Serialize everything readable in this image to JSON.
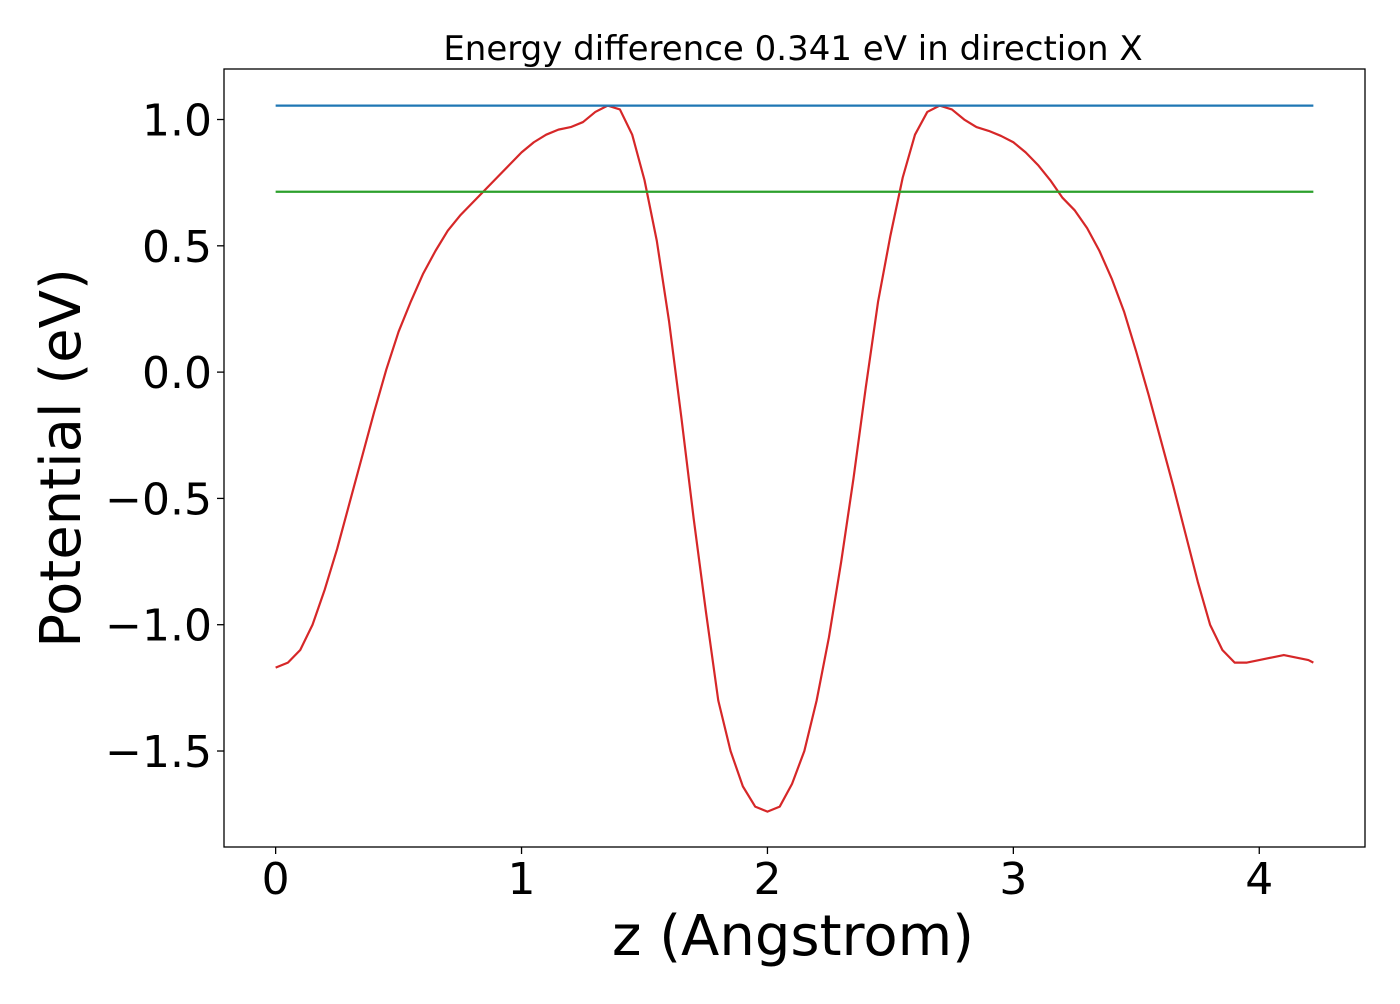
{
  "chart_data": {
    "type": "line",
    "title": "Energy difference 0.341 eV in direction X",
    "xlabel": "z (Angstrom)",
    "ylabel": "Potential (eV)",
    "xlim": [
      -0.21,
      4.43
    ],
    "ylim": [
      -1.88,
      1.2
    ],
    "xticks": [
      0,
      1,
      2,
      3,
      4
    ],
    "xtick_labels": [
      "0",
      "1",
      "2",
      "3",
      "4"
    ],
    "yticks": [
      1.0,
      0.5,
      0.0,
      -0.5,
      -1.0,
      -1.5
    ],
    "ytick_labels": [
      "1.0",
      "0.5",
      "0.0",
      "−0.5",
      "−1.0",
      "−1.5"
    ],
    "grid": false,
    "series": [
      {
        "color": "#d62728",
        "x": [
          0.0,
          0.05,
          0.1,
          0.15,
          0.2,
          0.25,
          0.3,
          0.35,
          0.4,
          0.45,
          0.5,
          0.55,
          0.6,
          0.65,
          0.7,
          0.75,
          0.8,
          0.85,
          0.9,
          0.95,
          1.0,
          1.05,
          1.1,
          1.15,
          1.2,
          1.25,
          1.3,
          1.35,
          1.4,
          1.45,
          1.5,
          1.55,
          1.6,
          1.65,
          1.7,
          1.75,
          1.8,
          1.85,
          1.9,
          1.95,
          2.0,
          2.05,
          2.1,
          2.15,
          2.2,
          2.25,
          2.3,
          2.35,
          2.4,
          2.45,
          2.5,
          2.55,
          2.6,
          2.65,
          2.7,
          2.75,
          2.8,
          2.85,
          2.9,
          2.95,
          3.0,
          3.05,
          3.1,
          3.15,
          3.2,
          3.25,
          3.3,
          3.35,
          3.4,
          3.45,
          3.5,
          3.55,
          3.6,
          3.65,
          3.7,
          3.75,
          3.8,
          3.85,
          3.9,
          3.95,
          4.0,
          4.05,
          4.1,
          4.15,
          4.2,
          4.22
        ],
        "y": [
          -1.17,
          -1.15,
          -1.1,
          -1.0,
          -0.86,
          -0.7,
          -0.52,
          -0.34,
          -0.16,
          0.01,
          0.16,
          0.28,
          0.39,
          0.48,
          0.56,
          0.62,
          0.67,
          0.72,
          0.77,
          0.82,
          0.87,
          0.91,
          0.94,
          0.96,
          0.97,
          0.99,
          1.03,
          1.055,
          1.04,
          0.94,
          0.76,
          0.52,
          0.2,
          -0.18,
          -0.58,
          -0.95,
          -1.3,
          -1.5,
          -1.64,
          -1.72,
          -1.74,
          -1.72,
          -1.63,
          -1.5,
          -1.3,
          -1.05,
          -0.75,
          -0.42,
          -0.06,
          0.28,
          0.54,
          0.77,
          0.94,
          1.03,
          1.055,
          1.04,
          1.0,
          0.97,
          0.955,
          0.935,
          0.91,
          0.87,
          0.82,
          0.76,
          0.69,
          0.64,
          0.57,
          0.48,
          0.37,
          0.24,
          0.08,
          -0.09,
          -0.27,
          -0.45,
          -0.64,
          -0.83,
          -1.0,
          -1.1,
          -1.15,
          -1.15,
          -1.14,
          -1.13,
          -1.12,
          -1.13,
          -1.14,
          -1.15
        ]
      },
      {
        "color": "#1f77b4",
        "x": [
          0.0,
          4.22
        ],
        "y": [
          1.055,
          1.055
        ]
      },
      {
        "color": "#2ca02c",
        "x": [
          0.0,
          4.22
        ],
        "y": [
          0.714,
          0.714
        ]
      }
    ]
  }
}
